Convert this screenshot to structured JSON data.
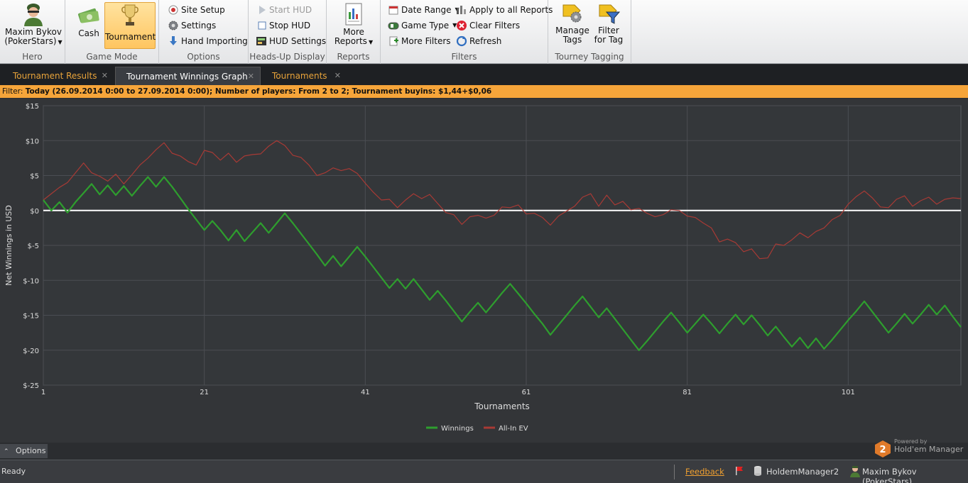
{
  "ribbon": {
    "hero": {
      "name_line1": "Maxim Bykov",
      "name_line2": "(PokerStars)",
      "group_label": "Hero"
    },
    "game_mode": {
      "cash_label": "Cash",
      "tournament_label": "Tournament",
      "group_label": "Game Mode",
      "active": "Tournament"
    },
    "options": {
      "site_setup": "Site Setup",
      "settings": "Settings",
      "hand_importing": "Hand Importing",
      "group_label": "Options"
    },
    "hud": {
      "start_hud": "Start HUD",
      "stop_hud": "Stop HUD",
      "hud_settings": "HUD Settings",
      "group_label": "Heads-Up Display"
    },
    "reports": {
      "more_reports_line1": "More",
      "more_reports_line2": "Reports",
      "group_label": "Reports"
    },
    "filters": {
      "date_range": "Date Range",
      "game_type": "Game Type",
      "more_filters": "More Filters",
      "apply_all": "Apply to all Reports",
      "clear_filters": "Clear Filters",
      "refresh": "Refresh",
      "group_label": "Filters"
    },
    "tagging": {
      "manage_line1": "Manage",
      "manage_line2": "Tags",
      "filter_line1": "Filter",
      "filter_line2": "for Tag",
      "group_label": "Tourney Tagging"
    }
  },
  "tabs": [
    {
      "label": "Tournament Results",
      "active": false
    },
    {
      "label": "Tournament Winnings Graph",
      "active": true
    },
    {
      "label": "Tournaments",
      "active": false
    }
  ],
  "filter_bar": {
    "prefix": "Filter:",
    "text": "Today (26.09.2014 0:00 to 27.09.2014 0:00); Number of players: From 2 to 2; Tournament buyins: $1,44+$0,06"
  },
  "chart_data": {
    "type": "line",
    "xlabel": "Tournaments",
    "ylabel": "Net Winnings in USD",
    "xlim": [
      1,
      115
    ],
    "ylim": [
      -25,
      15
    ],
    "xticks": [
      1,
      21,
      41,
      61,
      81,
      101
    ],
    "yticks": [
      15,
      10,
      5,
      0,
      -5,
      -10,
      -15,
      -20,
      -25
    ],
    "ytick_labels": [
      "$15",
      "$10",
      "$5",
      "$0",
      "$-5",
      "$-10",
      "$-15",
      "$-20",
      "$-25"
    ],
    "grid": true,
    "legend_position": "bottom",
    "series": [
      {
        "name": "Winnings",
        "color": "#2e9e2e",
        "x": [
          1,
          2,
          3,
          4,
          5,
          6,
          7,
          8,
          9,
          10,
          11,
          12,
          13,
          14,
          15,
          16,
          17,
          18,
          19,
          20,
          21,
          22,
          23,
          24,
          25,
          26,
          27,
          28,
          29,
          30,
          31,
          32,
          33,
          34,
          35,
          36,
          37,
          38,
          39,
          40,
          41,
          42,
          43,
          44,
          45,
          46,
          47,
          48,
          49,
          50,
          51,
          52,
          53,
          54,
          55,
          56,
          57,
          58,
          59,
          60,
          61,
          62,
          63,
          64,
          65,
          66,
          67,
          68,
          69,
          70,
          71,
          72,
          73,
          74,
          75,
          76,
          77,
          78,
          79,
          80,
          81,
          82,
          83,
          84,
          85,
          86,
          87,
          88,
          89,
          90,
          91,
          92,
          93,
          94,
          95,
          96,
          97,
          98,
          99,
          100,
          101,
          102,
          103,
          104,
          105,
          106,
          107,
          108,
          109,
          110,
          111,
          112,
          113,
          114,
          115
        ],
        "values": [
          1.5,
          0,
          1.2,
          -0.3,
          1.2,
          2.5,
          3.8,
          2.3,
          3.6,
          2.2,
          3.5,
          2.1,
          3.5,
          4.8,
          3.4,
          4.8,
          3.4,
          1.8,
          0.2,
          -1.3,
          -2.8,
          -1.5,
          -2.8,
          -4.3,
          -2.8,
          -4.4,
          -3.1,
          -1.8,
          -3.2,
          -1.8,
          -0.4,
          -1.8,
          -3.3,
          -4.8,
          -6.3,
          -7.9,
          -6.5,
          -8,
          -6.6,
          -5.2,
          -6.6,
          -8.1,
          -9.6,
          -11.1,
          -9.8,
          -11.2,
          -9.8,
          -11.3,
          -12.8,
          -11.5,
          -12.9,
          -14.4,
          -15.9,
          -14.5,
          -13.2,
          -14.6,
          -13.2,
          -11.8,
          -10.5,
          -11.9,
          -13.3,
          -14.8,
          -16.2,
          -17.8,
          -16.4,
          -15,
          -13.6,
          -12.3,
          -13.8,
          -15.3,
          -14,
          -15.5,
          -17,
          -18.5,
          -20,
          -18.7,
          -17.3,
          -15.9,
          -14.6,
          -16,
          -17.5,
          -16.2,
          -14.9,
          -16.2,
          -17.6,
          -16.2,
          -14.9,
          -16.3,
          -15,
          -16.4,
          -17.9,
          -16.6,
          -18.1,
          -19.5,
          -18.2,
          -19.7,
          -18.3,
          -19.8,
          -18.5,
          -17.1,
          -15.7,
          -14.4,
          -13,
          -14.5,
          -16,
          -17.5,
          -16.2,
          -14.8,
          -16.2,
          -14.9,
          -13.5,
          -14.9,
          -13.6,
          -15.2,
          -16.7
        ]
      },
      {
        "name": "All-In EV",
        "color": "#a83a35",
        "x": [
          1,
          2,
          3,
          4,
          5,
          6,
          7,
          8,
          9,
          10,
          11,
          12,
          13,
          14,
          15,
          16,
          17,
          18,
          19,
          20,
          21,
          22,
          23,
          24,
          25,
          26,
          27,
          28,
          29,
          30,
          31,
          32,
          33,
          34,
          35,
          36,
          37,
          38,
          39,
          40,
          41,
          42,
          43,
          44,
          45,
          46,
          47,
          48,
          49,
          50,
          51,
          52,
          53,
          54,
          55,
          56,
          57,
          58,
          59,
          60,
          61,
          62,
          63,
          64,
          65,
          66,
          67,
          68,
          69,
          70,
          71,
          72,
          73,
          74,
          75,
          76,
          77,
          78,
          79,
          80,
          81,
          82,
          83,
          84,
          85,
          86,
          87,
          88,
          89,
          90,
          91,
          92,
          93,
          94,
          95,
          96,
          97,
          98,
          99,
          100,
          101,
          102,
          103,
          104,
          105,
          106,
          107,
          108,
          109,
          110,
          111,
          112,
          113,
          114,
          115
        ],
        "values": [
          1.5,
          2.4,
          3.3,
          4,
          5.4,
          6.8,
          5.4,
          4.9,
          4.2,
          5.2,
          3.8,
          5.1,
          6.5,
          7.5,
          8.7,
          9.7,
          8.2,
          7.8,
          7,
          6.5,
          8.6,
          8.3,
          7.2,
          8.2,
          6.9,
          7.8,
          8,
          8.1,
          9.2,
          10,
          9.3,
          7.9,
          7.6,
          6.5,
          5,
          5.4,
          6.1,
          5.7,
          6,
          5.3,
          3.9,
          2.6,
          1.5,
          1.6,
          0.4,
          1.5,
          2.4,
          1.7,
          2.3,
          1,
          -0.3,
          -0.6,
          -2,
          -0.9,
          -0.7,
          -1.1,
          -0.7,
          0.5,
          0.4,
          0.8,
          -0.5,
          -0.4,
          -1,
          -2.1,
          -0.8,
          -0.1,
          0.6,
          1.9,
          2.4,
          0.6,
          2.2,
          0.8,
          1.3,
          0.1,
          0.3,
          -0.4,
          -0.9,
          -0.6,
          0.1,
          0,
          -0.8,
          -1,
          -1.8,
          -2.5,
          -4.5,
          -4.1,
          -4.6,
          -5.9,
          -5.5,
          -6.9,
          -6.8,
          -4.8,
          -5,
          -4.2,
          -3.2,
          -3.9,
          -3,
          -2.5,
          -1.3,
          -0.7,
          0.9,
          2,
          2.8,
          1.8,
          0.5,
          0.4,
          1.6,
          2.1,
          0.6,
          1.4,
          1.9,
          0.9,
          1.6,
          1.8,
          1.7
        ]
      }
    ]
  },
  "options_bar": {
    "label": "Options",
    "powered_by": "Powered by",
    "brand": "Hold'em Manager"
  },
  "status_bar": {
    "ready": "Ready",
    "feedback": "Feedback",
    "app_name": "HoldemManager2",
    "user": "Maxim Bykov (PokerStars)"
  }
}
